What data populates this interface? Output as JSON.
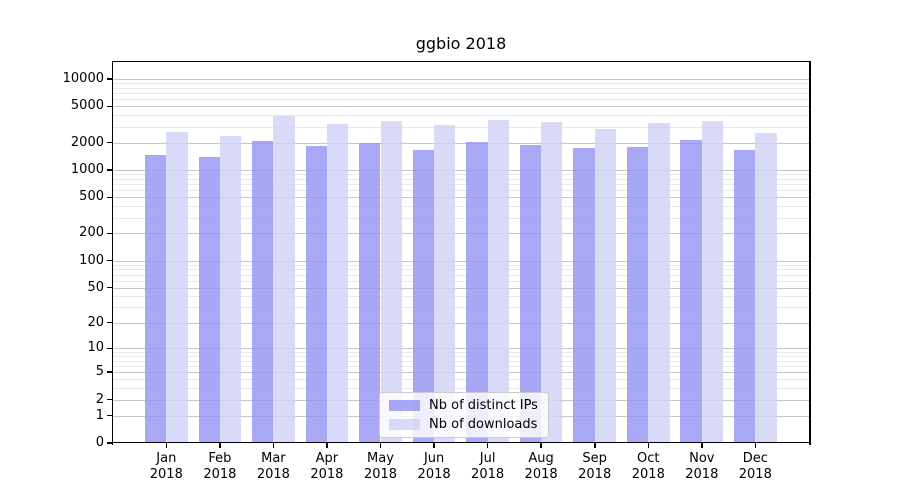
{
  "chart_data": {
    "type": "bar",
    "title": "ggbio 2018",
    "categories": [
      "Jan 2018",
      "Feb 2018",
      "Mar 2018",
      "Apr 2018",
      "May 2018",
      "Jun 2018",
      "Jul 2018",
      "Aug 2018",
      "Sep 2018",
      "Oct 2018",
      "Nov 2018",
      "Dec 2018"
    ],
    "series": [
      {
        "name": "Nb of distinct IPs",
        "color": "#9292f3",
        "values": [
          1450,
          1400,
          2100,
          1850,
          2000,
          1650,
          2050,
          1900,
          1750,
          1800,
          2150,
          1650
        ]
      },
      {
        "name": "Nb of downloads",
        "color": "#d0d0f6",
        "values": [
          2600,
          2350,
          3900,
          3200,
          3450,
          3100,
          3550,
          3400,
          2850,
          3250,
          3450,
          2550
        ]
      },
      {
        "comment": ""
      }
    ],
    "xlabel": "",
    "ylabel": "",
    "yscale": "log1p (symlog-like, 0 at baseline)",
    "ytick_labels": [
      "0",
      "1",
      "2",
      "5",
      "10",
      "20",
      "50",
      "100",
      "200",
      "500",
      "1000",
      "2000",
      "5000",
      "10000"
    ],
    "ytick_values": [
      0,
      1,
      2,
      5,
      10,
      20,
      50,
      100,
      200,
      500,
      1000,
      2000,
      5000,
      10000
    ],
    "ylim": [
      0,
      15000
    ],
    "grid": "horizontal major + faint log-minor lines",
    "legend_position": "lower center inside plot"
  },
  "legend": {
    "items": [
      {
        "label": "Nb of distinct IPs"
      },
      {
        "label": "Nb of downloads"
      }
    ]
  },
  "colors": {
    "bar_distinct_ips": "#9292f3",
    "bar_downloads": "#d0d0f6",
    "grid_major": "#c6c6c6",
    "grid_minor": "#e9e9e9",
    "spine": "#000000",
    "background": "#ffffff"
  }
}
